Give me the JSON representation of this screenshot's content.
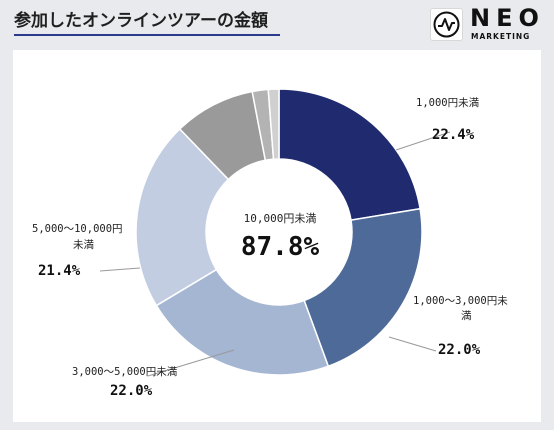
{
  "header": {
    "title": "参加したオンラインツアーの金額",
    "logo_text": "NEO",
    "logo_sub": "MARKETING"
  },
  "colors": {
    "accent": "#2a3a8c",
    "slices": [
      "#1f2b6e",
      "#4d6a99",
      "#a5b6d2",
      "#c3cde2",
      "#9a9a9a",
      "#b3b3b3",
      "#d0d0d0"
    ]
  },
  "chart_data": {
    "type": "pie",
    "donut": true,
    "categories": [
      "1,000円未満",
      "1,000〜3,000円未満",
      "3,000〜5,000円未満",
      "5,000〜10,000円未満",
      "",
      "",
      ""
    ],
    "values": [
      22.4,
      22.0,
      22.0,
      21.4,
      9.2,
      1.8,
      1.2
    ],
    "center": {
      "label": "10,000円未満",
      "value": "87.8%"
    },
    "labels": [
      {
        "name": "1,000円未満",
        "pct": "22.4%"
      },
      {
        "name_line1": "1,000〜3,000円未",
        "name_line2": "満",
        "pct": "22.0%"
      },
      {
        "name": "3,000〜5,000円未満",
        "pct": "22.0%"
      },
      {
        "name_line1": "5,000〜10,000円",
        "name_line2": "未満",
        "pct": "21.4%"
      }
    ]
  }
}
